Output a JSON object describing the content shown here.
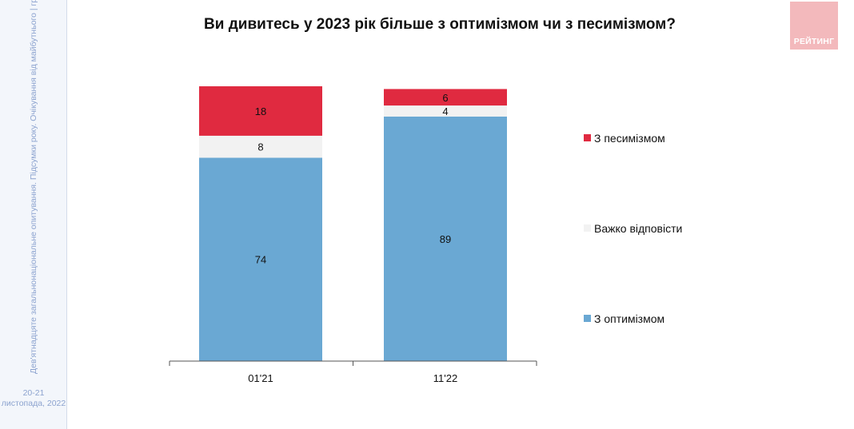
{
  "sidebar": {
    "note": "Дев'ятнадцяте загальнонаціональне опитування. Підсумки року. Очікування від майбутнього | група РЕЙТИНГ",
    "date_line1": "20-21",
    "date_line2": "листопада, 2022"
  },
  "logo": {
    "text": "РЕЙТИНГ",
    "color": "#f3b9bc"
  },
  "chart_data": {
    "type": "bar",
    "stacked": true,
    "title": "Ви дивитесь у 2023 рік більше з оптимізмом чи з песимізмом?",
    "categories": [
      "01'21",
      "11'22"
    ],
    "series": [
      {
        "name": "З оптимізмом",
        "values": [
          74,
          89
        ],
        "color": "#6aa8d3"
      },
      {
        "name": "Важко відповісти",
        "values": [
          8,
          4
        ],
        "color": "#f2f2f2"
      },
      {
        "name": "З песимізмом",
        "values": [
          18,
          6
        ],
        "color": "#e02a40"
      }
    ],
    "ylim": [
      0,
      100
    ],
    "legend_position": "right",
    "grid": false
  }
}
